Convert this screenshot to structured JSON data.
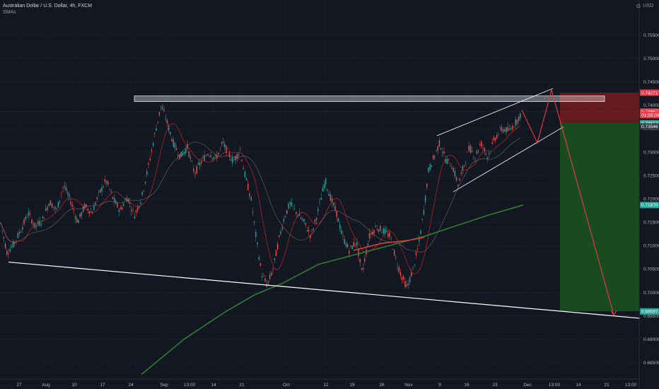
{
  "header": {
    "title": "Australian Dollar / U.S. Dollar, 4h, FXCM",
    "indicator": "SMAs",
    "currency": "USD"
  },
  "colors": {
    "background": "#131722",
    "up": "#26a69a",
    "down": "#ef5350",
    "sma_fast": "#b71c1c",
    "sma_mid": "#2e7d32",
    "trendline": "#ffffff",
    "target_zone": "#1b5e20",
    "stop_zone": "#7f1d1d",
    "projection": "#f23645"
  },
  "chart_data": {
    "type": "candlestick",
    "symbol": "AUDUSD",
    "timeframe": "4h",
    "ylim": [
      0.6815,
      0.7625
    ],
    "y_ticks": [
      "0.75500",
      "0.75000",
      "0.74500",
      "0.74000",
      "0.73500",
      "0.73000",
      "0.72500",
      "0.72000",
      "0.71500",
      "0.71000",
      "0.70500",
      "0.70000",
      "0.69500",
      "0.69000",
      "0.68500"
    ],
    "x_ticks": [
      "27",
      "Aug",
      "10",
      "17",
      "24",
      "Sep",
      "13:00",
      "14",
      "21",
      "Oct",
      "12",
      "19",
      "26",
      "Nov",
      "9",
      "16",
      "23",
      "Dec",
      "13:00",
      "14",
      "21",
      "13:00"
    ],
    "price_tags": [
      {
        "label": "0.74271",
        "value": 0.74271,
        "color": "#f23645"
      },
      {
        "label": "0.73867",
        "value": 0.73867,
        "color": "#f23645"
      },
      {
        "label": "01:55:09",
        "value": 0.7379,
        "color": "#f23645"
      },
      {
        "label": "0.73617",
        "value": 0.73617,
        "color": "#26a69a"
      },
      {
        "label": "0.73546",
        "value": 0.73546,
        "color": "#363a45"
      },
      {
        "label": "0.71870",
        "value": 0.7187,
        "color": "#26a69a"
      },
      {
        "label": "0.69597",
        "value": 0.69597,
        "color": "#26a69a"
      }
    ],
    "price_path": [
      [
        0,
        0.7155
      ],
      [
        10,
        0.7085
      ],
      [
        20,
        0.7105
      ],
      [
        30,
        0.7135
      ],
      [
        40,
        0.717
      ],
      [
        50,
        0.714
      ],
      [
        60,
        0.7155
      ],
      [
        70,
        0.7195
      ],
      [
        80,
        0.7175
      ],
      [
        90,
        0.723
      ],
      [
        100,
        0.7195
      ],
      [
        110,
        0.715
      ],
      [
        120,
        0.7185
      ],
      [
        130,
        0.717
      ],
      [
        140,
        0.721
      ],
      [
        150,
        0.724
      ],
      [
        160,
        0.72
      ],
      [
        170,
        0.7175
      ],
      [
        180,
        0.7205
      ],
      [
        190,
        0.7165
      ],
      [
        200,
        0.72
      ],
      [
        210,
        0.727
      ],
      [
        220,
        0.7345
      ],
      [
        228,
        0.74
      ],
      [
        235,
        0.737
      ],
      [
        245,
        0.732
      ],
      [
        255,
        0.729
      ],
      [
        265,
        0.731
      ],
      [
        275,
        0.7255
      ],
      [
        285,
        0.728
      ],
      [
        295,
        0.73
      ],
      [
        305,
        0.7285
      ],
      [
        315,
        0.732
      ],
      [
        322,
        0.73
      ],
      [
        330,
        0.728
      ],
      [
        340,
        0.7305
      ],
      [
        345,
        0.726
      ],
      [
        355,
        0.72
      ],
      [
        362,
        0.712
      ],
      [
        370,
        0.704
      ],
      [
        378,
        0.7015
      ],
      [
        386,
        0.705
      ],
      [
        394,
        0.711
      ],
      [
        402,
        0.716
      ],
      [
        410,
        0.719
      ],
      [
        420,
        0.717
      ],
      [
        430,
        0.715
      ],
      [
        440,
        0.712
      ],
      [
        450,
        0.7175
      ],
      [
        460,
        0.724
      ],
      [
        468,
        0.72
      ],
      [
        476,
        0.717
      ],
      [
        484,
        0.712
      ],
      [
        494,
        0.709
      ],
      [
        504,
        0.711
      ],
      [
        512,
        0.704
      ],
      [
        522,
        0.712
      ],
      [
        532,
        0.714
      ],
      [
        544,
        0.713
      ],
      [
        552,
        0.712
      ],
      [
        560,
        0.707
      ],
      [
        568,
        0.7035
      ],
      [
        576,
        0.701
      ],
      [
        584,
        0.705
      ],
      [
        592,
        0.71
      ],
      [
        600,
        0.718
      ],
      [
        606,
        0.726
      ],
      [
        614,
        0.729
      ],
      [
        622,
        0.732
      ],
      [
        630,
        0.7285
      ],
      [
        640,
        0.727
      ],
      [
        648,
        0.723
      ],
      [
        656,
        0.727
      ],
      [
        664,
        0.731
      ],
      [
        672,
        0.729
      ],
      [
        680,
        0.732
      ],
      [
        690,
        0.729
      ],
      [
        700,
        0.733
      ],
      [
        710,
        0.735
      ],
      [
        720,
        0.7345
      ],
      [
        730,
        0.7365
      ],
      [
        738,
        0.7385
      ]
    ],
    "sma_green": [
      [
        200,
        0.6825
      ],
      [
        260,
        0.69
      ],
      [
        320,
        0.696
      ],
      [
        360,
        0.6995
      ],
      [
        400,
        0.702
      ],
      [
        450,
        0.706
      ],
      [
        500,
        0.708
      ],
      [
        550,
        0.71
      ],
      [
        600,
        0.712
      ],
      [
        640,
        0.714
      ],
      [
        690,
        0.7165
      ],
      [
        740,
        0.7187
      ]
    ],
    "sma_red_segment": [
      [
        500,
        0.709
      ],
      [
        540,
        0.7105
      ],
      [
        580,
        0.7112
      ],
      [
        600,
        0.7118
      ]
    ],
    "resistance_zone": {
      "x1": 190,
      "x2": 855,
      "y_top": 0.742,
      "y_bottom": 0.7408
    },
    "lower_trendline": [
      [
        12,
        0.7065
      ],
      [
        905,
        0.6945
      ]
    ],
    "channel_upper": [
      [
        618,
        0.7335
      ],
      [
        782,
        0.7436
      ]
    ],
    "channel_lower": [
      [
        641,
        0.7215
      ],
      [
        797,
        0.7354
      ]
    ],
    "stop_zone": {
      "x1": 792,
      "x2": 904,
      "y_top": 0.7427,
      "y_bottom": 0.7362
    },
    "target_zone": {
      "x1": 792,
      "x2": 904,
      "y_top": 0.7362,
      "y_bottom": 0.696
    },
    "projection": [
      [
        738,
        0.739
      ],
      [
        760,
        0.732
      ],
      [
        780,
        0.7433
      ],
      [
        868,
        0.6952
      ]
    ]
  }
}
